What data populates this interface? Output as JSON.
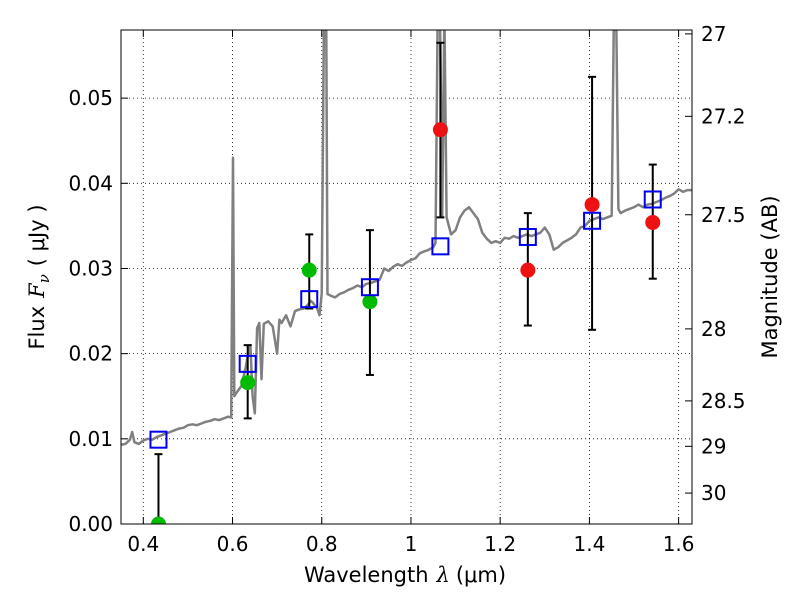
{
  "chart_data": {
    "type": "scatter",
    "xlabel": "Wavelength",
    "xlabel_symbol": "λ",
    "xlabel_unit": "(μm)",
    "ylabel": "Flux",
    "ylabel_symbol": "F",
    "ylabel_sub": "ν",
    "ylabel_unit": "( μJy )",
    "y2label": "Magnitude (AB)",
    "xlim": [
      0.35,
      1.63
    ],
    "ylim": [
      0.0,
      0.058
    ],
    "grid": true,
    "x_ticks": [
      {
        "value": 0.4,
        "label": "0.4"
      },
      {
        "value": 0.6,
        "label": "0.6"
      },
      {
        "value": 0.8,
        "label": "0.8"
      },
      {
        "value": 1.0,
        "label": "1"
      },
      {
        "value": 1.2,
        "label": "1.2"
      },
      {
        "value": 1.4,
        "label": "1.4"
      },
      {
        "value": 1.6,
        "label": "1.6"
      }
    ],
    "y_ticks": [
      {
        "value": 0.0,
        "label": "0.00"
      },
      {
        "value": 0.01,
        "label": "0.01"
      },
      {
        "value": 0.02,
        "label": "0.02"
      },
      {
        "value": 0.03,
        "label": "0.03"
      },
      {
        "value": 0.04,
        "label": "0.04"
      },
      {
        "value": 0.05,
        "label": "0.05"
      }
    ],
    "mag_ticks": [
      {
        "mag": 27,
        "label": "27"
      },
      {
        "mag": 27.2,
        "label": "27.2"
      },
      {
        "mag": 27.5,
        "label": "27.5"
      },
      {
        "mag": 28,
        "label": "28"
      },
      {
        "mag": 28.5,
        "label": "28.5"
      },
      {
        "mag": 29,
        "label": "29"
      },
      {
        "mag": 30,
        "label": "30"
      }
    ],
    "series": [
      {
        "kind": "line",
        "color": "#808080",
        "points": [
          [
            0.35,
            0.0093
          ],
          [
            0.36,
            0.0094
          ],
          [
            0.37,
            0.0099
          ],
          [
            0.375,
            0.0108
          ],
          [
            0.38,
            0.0096
          ],
          [
            0.39,
            0.0094
          ],
          [
            0.4,
            0.0098
          ],
          [
            0.41,
            0.01
          ],
          [
            0.42,
            0.0099
          ],
          [
            0.43,
            0.0102
          ],
          [
            0.44,
            0.0104
          ],
          [
            0.45,
            0.0106
          ],
          [
            0.46,
            0.0108
          ],
          [
            0.47,
            0.011
          ],
          [
            0.48,
            0.0112
          ],
          [
            0.49,
            0.0113
          ],
          [
            0.5,
            0.0116
          ],
          [
            0.51,
            0.0117
          ],
          [
            0.52,
            0.0116
          ],
          [
            0.53,
            0.0118
          ],
          [
            0.54,
            0.012
          ],
          [
            0.55,
            0.0121
          ],
          [
            0.56,
            0.0123
          ],
          [
            0.57,
            0.0122
          ],
          [
            0.58,
            0.0124
          ],
          [
            0.59,
            0.0126
          ],
          [
            0.597,
            0.0125
          ],
          [
            0.601,
            0.043
          ],
          [
            0.604,
            0.015
          ],
          [
            0.61,
            0.0155
          ],
          [
            0.62,
            0.0162
          ],
          [
            0.63,
            0.0185
          ],
          [
            0.635,
            0.02
          ],
          [
            0.64,
            0.021
          ],
          [
            0.645,
            0.015
          ],
          [
            0.65,
            0.013
          ],
          [
            0.655,
            0.023
          ],
          [
            0.66,
            0.0236
          ],
          [
            0.665,
            0.017
          ],
          [
            0.67,
            0.0235
          ],
          [
            0.68,
            0.0238
          ],
          [
            0.69,
            0.0232
          ],
          [
            0.7,
            0.02
          ],
          [
            0.705,
            0.024
          ],
          [
            0.71,
            0.0236
          ],
          [
            0.72,
            0.0245
          ],
          [
            0.73,
            0.0232
          ],
          [
            0.74,
            0.025
          ],
          [
            0.75,
            0.0252
          ],
          [
            0.76,
            0.0253
          ],
          [
            0.77,
            0.0258
          ],
          [
            0.775,
            0.0262
          ],
          [
            0.78,
            0.026
          ],
          [
            0.79,
            0.0253
          ],
          [
            0.795,
            0.0245
          ],
          [
            0.8,
            0.027
          ],
          [
            0.805,
            0.06
          ],
          [
            0.81,
            0.06
          ],
          [
            0.813,
            0.027
          ],
          [
            0.82,
            0.0268
          ],
          [
            0.83,
            0.0266
          ],
          [
            0.84,
            0.027
          ],
          [
            0.85,
            0.0272
          ],
          [
            0.86,
            0.0275
          ],
          [
            0.87,
            0.0277
          ],
          [
            0.88,
            0.028
          ],
          [
            0.89,
            0.0278
          ],
          [
            0.9,
            0.0282
          ],
          [
            0.91,
            0.0283
          ],
          [
            0.92,
            0.0285
          ],
          [
            0.93,
            0.0287
          ],
          [
            0.94,
            0.03
          ],
          [
            0.95,
            0.0297
          ],
          [
            0.96,
            0.0302
          ],
          [
            0.97,
            0.0305
          ],
          [
            0.98,
            0.0303
          ],
          [
            0.99,
            0.0307
          ],
          [
            1.0,
            0.031
          ],
          [
            1.01,
            0.0312
          ],
          [
            1.02,
            0.0318
          ],
          [
            1.03,
            0.032
          ],
          [
            1.04,
            0.0322
          ],
          [
            1.05,
            0.0325
          ],
          [
            1.055,
            0.033
          ],
          [
            1.06,
            0.06
          ],
          [
            1.065,
            0.06
          ],
          [
            1.07,
            0.036
          ],
          [
            1.075,
            0.06
          ],
          [
            1.08,
            0.036
          ],
          [
            1.09,
            0.034
          ],
          [
            1.1,
            0.0345
          ],
          [
            1.11,
            0.036
          ],
          [
            1.12,
            0.0368
          ],
          [
            1.13,
            0.0372
          ],
          [
            1.14,
            0.0365
          ],
          [
            1.15,
            0.0358
          ],
          [
            1.16,
            0.0342
          ],
          [
            1.17,
            0.0335
          ],
          [
            1.18,
            0.033
          ],
          [
            1.19,
            0.0332
          ],
          [
            1.2,
            0.033
          ],
          [
            1.21,
            0.0336
          ],
          [
            1.22,
            0.0335
          ],
          [
            1.23,
            0.0338
          ],
          [
            1.24,
            0.0336
          ],
          [
            1.25,
            0.0338
          ],
          [
            1.26,
            0.034
          ],
          [
            1.27,
            0.0338
          ],
          [
            1.28,
            0.034
          ],
          [
            1.29,
            0.0342
          ],
          [
            1.3,
            0.0348
          ],
          [
            1.31,
            0.034
          ],
          [
            1.32,
            0.0322
          ],
          [
            1.33,
            0.0325
          ],
          [
            1.34,
            0.033
          ],
          [
            1.35,
            0.0333
          ],
          [
            1.36,
            0.0336
          ],
          [
            1.37,
            0.034
          ],
          [
            1.38,
            0.0348
          ],
          [
            1.39,
            0.035
          ],
          [
            1.4,
            0.0356
          ],
          [
            1.41,
            0.0358
          ],
          [
            1.42,
            0.036
          ],
          [
            1.43,
            0.0358
          ],
          [
            1.44,
            0.036
          ],
          [
            1.45,
            0.0362
          ],
          [
            1.455,
            0.06
          ],
          [
            1.46,
            0.06
          ],
          [
            1.465,
            0.037
          ],
          [
            1.47,
            0.0365
          ],
          [
            1.48,
            0.0368
          ],
          [
            1.49,
            0.037
          ],
          [
            1.5,
            0.0372
          ],
          [
            1.51,
            0.0375
          ],
          [
            1.52,
            0.0372
          ],
          [
            1.53,
            0.0375
          ],
          [
            1.54,
            0.0376
          ],
          [
            1.55,
            0.0378
          ],
          [
            1.56,
            0.038
          ],
          [
            1.57,
            0.0383
          ],
          [
            1.58,
            0.0385
          ],
          [
            1.59,
            0.0388
          ],
          [
            1.6,
            0.0393
          ],
          [
            1.61,
            0.039
          ],
          [
            1.62,
            0.0392
          ],
          [
            1.63,
            0.0392
          ]
        ]
      },
      {
        "kind": "markers",
        "marker": "circle",
        "color": "#00bb00",
        "points": [
          {
            "x": 0.434,
            "y": 0.0,
            "yerr": [
              0.0,
              0.0082
            ]
          },
          {
            "x": 0.634,
            "y": 0.0166,
            "yerr": [
              0.0124,
              0.021
            ]
          },
          {
            "x": 0.772,
            "y": 0.0298,
            "yerr": [
              0.0253,
              0.034
            ]
          },
          {
            "x": 0.908,
            "y": 0.0261,
            "yerr": [
              0.0175,
              0.0345
            ]
          }
        ]
      },
      {
        "kind": "markers",
        "marker": "circle",
        "color": "#ee1111",
        "points": [
          {
            "x": 1.066,
            "y": 0.0463,
            "yerr": [
              0.036,
              0.0565
            ]
          },
          {
            "x": 1.262,
            "y": 0.0298,
            "yerr": [
              0.0233,
              0.0365
            ]
          },
          {
            "x": 1.406,
            "y": 0.0375,
            "yerr": [
              0.0228,
              0.0525
            ]
          },
          {
            "x": 1.542,
            "y": 0.0354,
            "yerr": [
              0.0288,
              0.0422
            ]
          }
        ]
      },
      {
        "kind": "markers",
        "marker": "open-square",
        "color": "#0000ee",
        "points": [
          {
            "x": 0.434,
            "y": 0.0099
          },
          {
            "x": 0.634,
            "y": 0.0188
          },
          {
            "x": 0.772,
            "y": 0.0264
          },
          {
            "x": 0.908,
            "y": 0.0278
          },
          {
            "x": 1.066,
            "y": 0.0326
          },
          {
            "x": 1.262,
            "y": 0.0337
          },
          {
            "x": 1.406,
            "y": 0.0356
          },
          {
            "x": 1.542,
            "y": 0.0381
          }
        ]
      }
    ]
  }
}
